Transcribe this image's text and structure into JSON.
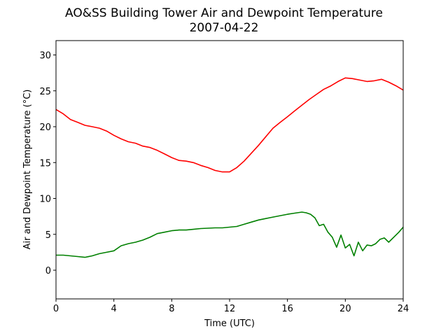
{
  "chart_data": {
    "type": "line",
    "title": "AO&SS Building Tower Air and Dewpoint Temperature",
    "subtitle": "2007-04-22",
    "xlabel": "Time (UTC)",
    "ylabel": "Air and Dewpoint Temperature (°C)",
    "xlim": [
      0,
      24
    ],
    "ylim": [
      -4,
      32
    ],
    "x_ticks": [
      0,
      4,
      8,
      12,
      16,
      20,
      24
    ],
    "y_ticks": [
      0,
      5,
      10,
      15,
      20,
      25,
      30
    ],
    "grid": false,
    "series": [
      {
        "color": "#ff0000",
        "x": [
          0,
          0.5,
          1,
          1.5,
          2,
          2.5,
          3,
          3.5,
          4,
          4.5,
          5,
          5.5,
          6,
          6.5,
          7,
          7.5,
          8,
          8.5,
          9,
          9.5,
          10,
          10.5,
          11,
          11.5,
          12,
          12.5,
          13,
          13.5,
          14,
          14.5,
          15,
          15.5,
          16,
          16.5,
          17,
          17.5,
          18,
          18.5,
          19,
          19.5,
          20,
          20.5,
          21,
          21.5,
          22,
          22.5,
          23,
          23.5,
          24
        ],
        "values": [
          22.4,
          21.8,
          21.0,
          20.6,
          20.2,
          20.0,
          19.8,
          19.4,
          18.8,
          18.3,
          17.9,
          17.7,
          17.3,
          17.1,
          16.7,
          16.2,
          15.7,
          15.3,
          15.2,
          15.0,
          14.6,
          14.3,
          13.9,
          13.7,
          13.7,
          14.3,
          15.2,
          16.3,
          17.4,
          18.6,
          19.8,
          20.6,
          21.4,
          22.2,
          23.0,
          23.8,
          24.5,
          25.2,
          25.7,
          26.3,
          26.8,
          26.7,
          26.5,
          26.3,
          26.4,
          26.6,
          26.2,
          25.7,
          25.1
        ]
      },
      {
        "color": "#008000",
        "x": [
          0,
          0.5,
          1,
          1.5,
          2,
          2.5,
          3,
          3.5,
          4,
          4.5,
          5,
          5.5,
          6,
          6.5,
          7,
          7.5,
          8,
          8.5,
          9,
          9.5,
          10,
          10.5,
          11,
          11.5,
          12,
          12.5,
          13,
          13.5,
          14,
          14.5,
          15,
          15.5,
          16,
          16.5,
          17,
          17.3,
          17.6,
          17.9,
          18.2,
          18.5,
          18.8,
          19.1,
          19.4,
          19.7,
          20.0,
          20.3,
          20.6,
          20.9,
          21.2,
          21.5,
          21.8,
          22.1,
          22.4,
          22.7,
          23.0,
          23.4,
          23.7,
          24
        ],
        "values": [
          2.1,
          2.1,
          2.0,
          1.9,
          1.8,
          2.0,
          2.3,
          2.5,
          2.7,
          3.4,
          3.7,
          3.9,
          4.2,
          4.6,
          5.1,
          5.3,
          5.5,
          5.6,
          5.6,
          5.7,
          5.8,
          5.85,
          5.9,
          5.9,
          6.0,
          6.1,
          6.4,
          6.7,
          7.0,
          7.2,
          7.4,
          7.6,
          7.8,
          7.95,
          8.1,
          8.0,
          7.8,
          7.3,
          6.2,
          6.4,
          5.3,
          4.6,
          3.2,
          4.9,
          3.1,
          3.6,
          2.0,
          3.9,
          2.7,
          3.5,
          3.4,
          3.7,
          4.3,
          4.5,
          3.9,
          4.7,
          5.3,
          6.0
        ]
      }
    ]
  }
}
